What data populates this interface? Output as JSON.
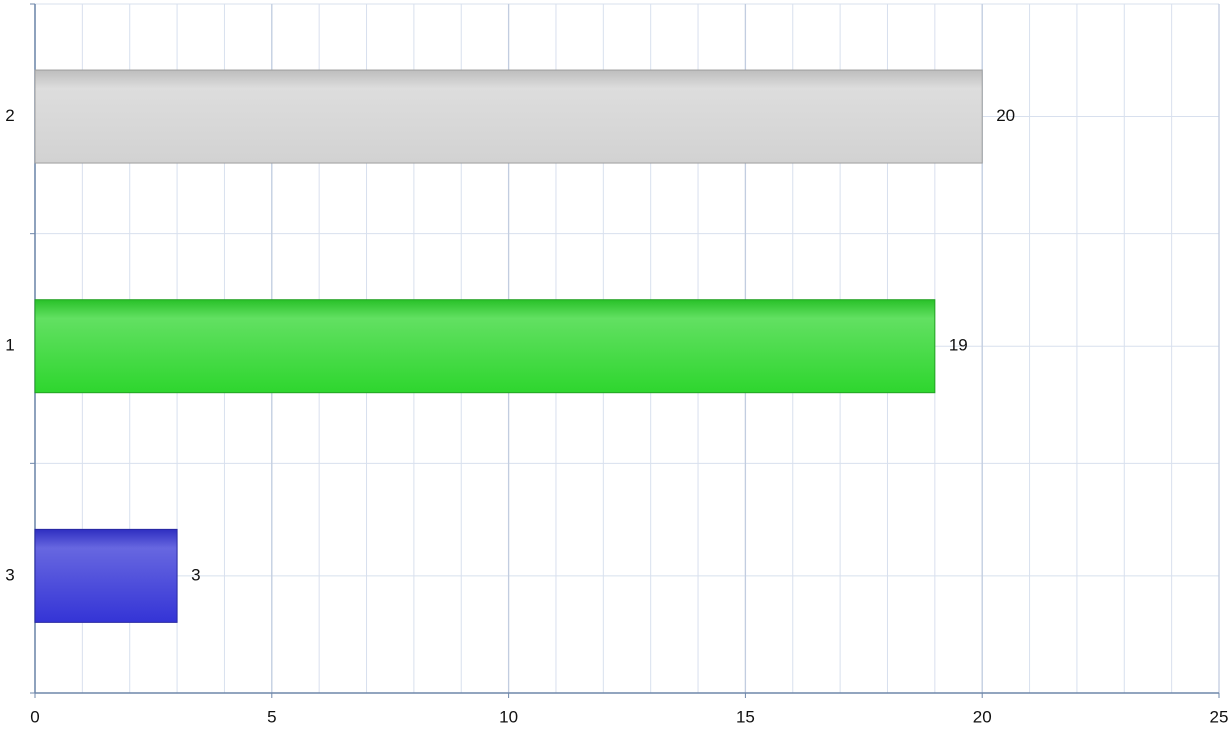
{
  "chart_data": {
    "type": "barh",
    "categories": [
      "2",
      "1",
      "3"
    ],
    "values": [
      20,
      19,
      3
    ],
    "colors": [
      "#d2d2d2",
      "#2ed62e",
      "#3434d6"
    ],
    "xlim": [
      0,
      25
    ],
    "xticks": [
      0,
      5,
      10,
      15,
      20,
      25
    ],
    "grid": true,
    "minor_grid_step": 1
  }
}
